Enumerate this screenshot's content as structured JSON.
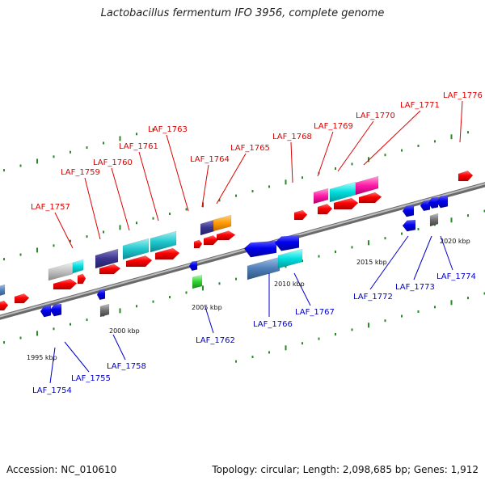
{
  "title": "Lactobacillus fermentum IFO 3956, complete genome",
  "footer": {
    "accession": "Accession: NC_010610",
    "topology": "Topology: circular; Length: 2,098,685 bp; Genes: 1,912"
  },
  "colors": {
    "backbone": "#8a8a8a",
    "forward_label": "#e00000",
    "reverse_label": "#0000cc",
    "tick": "#2a8a2a"
  },
  "scale_labels": [
    "1995 kbp",
    "2000 kbp",
    "2005 kbp",
    "2010 kbp",
    "2015 kbp",
    "2020 kbp"
  ],
  "forward_labels": [
    "LAF_1757",
    "LAF_1759",
    "LAF_1760",
    "LAF_1761",
    "LAF_1763",
    "LAF_1764",
    "LAF_1765",
    "LAF_1768",
    "LAF_1769",
    "LAF_1770",
    "LAF_1771",
    "LAF_1776"
  ],
  "reverse_labels": [
    "LAF_1754",
    "LAF_1755",
    "LAF_1758",
    "LAF_1762",
    "LAF_1766",
    "LAF_1767",
    "LAF_1772",
    "LAF_1773",
    "LAF_1774"
  ]
}
